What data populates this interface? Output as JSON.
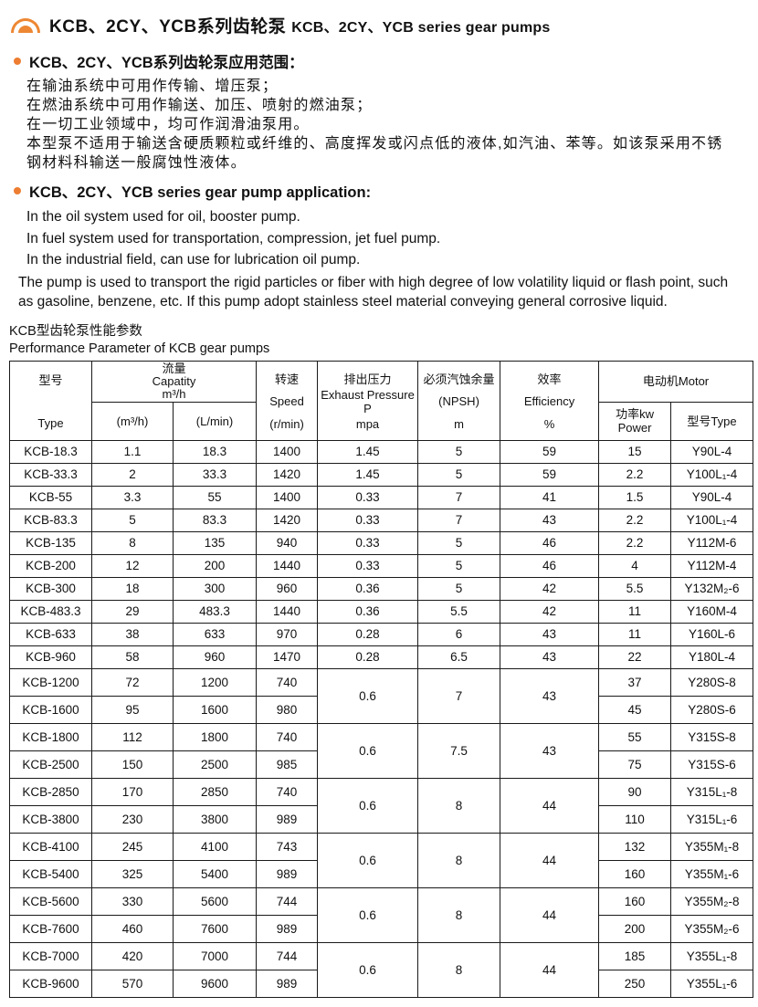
{
  "page_title": {
    "zh": "KCB、2CY、YCB系列齿轮泵",
    "en": "KCB、2CY、YCB series gear pumps"
  },
  "application_zh": {
    "heading": "KCB、2CY、YCB系列齿轮泵应用范围：",
    "lines": [
      "在输油系统中可用作传输、增压泵；",
      "在燃油系统中可用作输送、加压、喷射的燃油泵；",
      "在一切工业领域中，均可作润滑油泵用。",
      "本型泵不适用于输送含硬质颗粒或纤维的、高度挥发或闪点低的液体,如汽油、苯等。如该泵采用不锈",
      "钢材料科输送一般腐蚀性液体。"
    ]
  },
  "application_en": {
    "heading": "KCB、2CY、YCB series gear pump application:",
    "lines": [
      "In the oil system used for oil, booster pump.",
      "In fuel system used for transportation, compression, jet fuel pump.",
      "In the industrial field, can use for lubrication oil pump."
    ],
    "paragraph": "The pump is used to transport the rigid particles or fiber with high degree of low volatility liquid or flash point, such as gasoline, benzene, etc. If this pump adopt stainless steel material conveying general corrosive liquid."
  },
  "table": {
    "title_zh": "KCB型齿轮泵性能参数",
    "title_en": "Performance Parameter of KCB gear pumps",
    "head": {
      "type_zh": "型号",
      "type_en": "Type",
      "capacity_zh": "流量",
      "capacity_en": "Capatity",
      "capacity_unit": "m³/h",
      "sub_m3h": "(m³/h)",
      "sub_lmin": "(L/min)",
      "speed_zh": "转速",
      "speed_en": "Speed",
      "speed_unit": "(r/min)",
      "pressure_zh": "排出压力",
      "pressure_en": "Exhaust Pressure P",
      "pressure_unit": "mpa",
      "npsh_zh": "必须汽蚀余量",
      "npsh_en": "(NPSH)",
      "npsh_unit": "m",
      "eff_zh": "效率",
      "eff_en": "Efficiency",
      "eff_unit": "%",
      "motor_group": "电动机Motor",
      "power_zh": "功率kw",
      "power_en": "Power",
      "motor_type": "型号Type"
    },
    "rows": [
      {
        "type": "KCB-18.3",
        "m3h": "1.1",
        "lmin": "18.3",
        "speed": "1400",
        "pressure": "1.45",
        "npsh": "5",
        "eff": "59",
        "power": "15",
        "motor": "Y90L-4"
      },
      {
        "type": "KCB-33.3",
        "m3h": "2",
        "lmin": "33.3",
        "speed": "1420",
        "pressure": "1.45",
        "npsh": "5",
        "eff": "59",
        "power": "2.2",
        "motor": "Y100L₁-4"
      },
      {
        "type": "KCB-55",
        "m3h": "3.3",
        "lmin": "55",
        "speed": "1400",
        "pressure": "0.33",
        "npsh": "7",
        "eff": "41",
        "power": "1.5",
        "motor": "Y90L-4"
      },
      {
        "type": "KCB-83.3",
        "m3h": "5",
        "lmin": "83.3",
        "speed": "1420",
        "pressure": "0.33",
        "npsh": "7",
        "eff": "43",
        "power": "2.2",
        "motor": "Y100L₁-4"
      },
      {
        "type": "KCB-135",
        "m3h": "8",
        "lmin": "135",
        "speed": "940",
        "pressure": "0.33",
        "npsh": "5",
        "eff": "46",
        "power": "2.2",
        "motor": "Y112M-6"
      },
      {
        "type": "KCB-200",
        "m3h": "12",
        "lmin": "200",
        "speed": "1440",
        "pressure": "0.33",
        "npsh": "5",
        "eff": "46",
        "power": "4",
        "motor": "Y112M-4"
      },
      {
        "type": "KCB-300",
        "m3h": "18",
        "lmin": "300",
        "speed": "960",
        "pressure": "0.36",
        "npsh": "5",
        "eff": "42",
        "power": "5.5",
        "motor": "Y132M₂-6"
      },
      {
        "type": "KCB-483.3",
        "m3h": "29",
        "lmin": "483.3",
        "speed": "1440",
        "pressure": "0.36",
        "npsh": "5.5",
        "eff": "42",
        "power": "11",
        "motor": "Y160M-4"
      },
      {
        "type": "KCB-633",
        "m3h": "38",
        "lmin": "633",
        "speed": "970",
        "pressure": "0.28",
        "npsh": "6",
        "eff": "43",
        "power": "11",
        "motor": "Y160L-6"
      },
      {
        "type": "KCB-960",
        "m3h": "58",
        "lmin": "960",
        "speed": "1470",
        "pressure": "0.28",
        "npsh": "6.5",
        "eff": "43",
        "power": "22",
        "motor": "Y180L-4"
      },
      {
        "type": "KCB-1200",
        "m3h": "72",
        "lmin": "1200",
        "speed": "740",
        "pressure": "0.6",
        "npsh": "7",
        "eff": "43",
        "span": 2,
        "power": "37",
        "motor": "Y280S-8"
      },
      {
        "type": "KCB-1600",
        "m3h": "95",
        "lmin": "1600",
        "speed": "980",
        "power": "45",
        "motor": "Y280S-6"
      },
      {
        "type": "KCB-1800",
        "m3h": "112",
        "lmin": "1800",
        "speed": "740",
        "pressure": "0.6",
        "npsh": "7.5",
        "eff": "43",
        "span": 2,
        "power": "55",
        "motor": "Y315S-8"
      },
      {
        "type": "KCB-2500",
        "m3h": "150",
        "lmin": "2500",
        "speed": "985",
        "power": "75",
        "motor": "Y315S-6"
      },
      {
        "type": "KCB-2850",
        "m3h": "170",
        "lmin": "2850",
        "speed": "740",
        "pressure": "0.6",
        "npsh": "8",
        "eff": "44",
        "span": 2,
        "power": "90",
        "motor": "Y315L₁-8"
      },
      {
        "type": "KCB-3800",
        "m3h": "230",
        "lmin": "3800",
        "speed": "989",
        "power": "110",
        "motor": "Y315L₁-6"
      },
      {
        "type": "KCB-4100",
        "m3h": "245",
        "lmin": "4100",
        "speed": "743",
        "pressure": "0.6",
        "npsh": "8",
        "eff": "44",
        "span": 2,
        "power": "132",
        "motor": "Y355M₁-8"
      },
      {
        "type": "KCB-5400",
        "m3h": "325",
        "lmin": "5400",
        "speed": "989",
        "power": "160",
        "motor": "Y355M₁-6"
      },
      {
        "type": "KCB-5600",
        "m3h": "330",
        "lmin": "5600",
        "speed": "744",
        "pressure": "0.6",
        "npsh": "8",
        "eff": "44",
        "span": 2,
        "power": "160",
        "motor": "Y355M₂-8"
      },
      {
        "type": "KCB-7600",
        "m3h": "460",
        "lmin": "7600",
        "speed": "989",
        "power": "200",
        "motor": "Y355M₂-6"
      },
      {
        "type": "KCB-7000",
        "m3h": "420",
        "lmin": "7000",
        "speed": "744",
        "pressure": "0.6",
        "npsh": "8",
        "eff": "44",
        "span": 2,
        "power": "185",
        "motor": "Y355L₁-8"
      },
      {
        "type": "KCB-9600",
        "m3h": "570",
        "lmin": "9600",
        "speed": "989",
        "power": "250",
        "motor": "Y355L₁-6"
      }
    ]
  },
  "colors": {
    "accent_orange": "#ED7D31",
    "border": "#1a1a1a",
    "text": "#111111",
    "background": "#ffffff"
  },
  "icons": {
    "logo": "pump-arc-logo",
    "bullet": "orange-dot"
  }
}
